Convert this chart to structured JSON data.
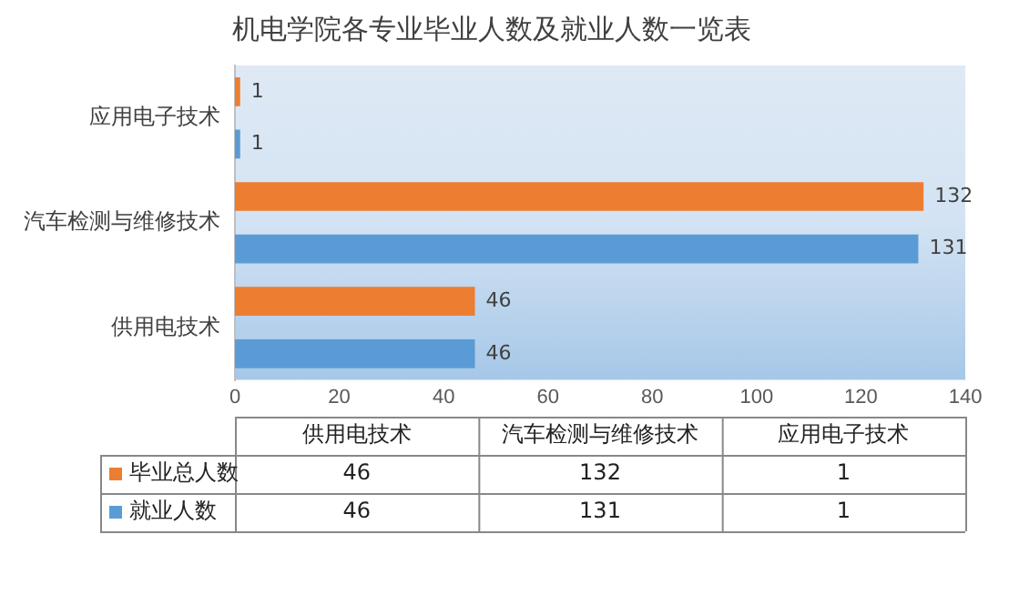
{
  "chart_data": {
    "type": "bar",
    "orientation": "horizontal",
    "title": "机电学院各专业毕业人数及就业人数一览表",
    "categories": [
      "应用电子技术",
      "汽车检测与维修技术",
      "供用电技术"
    ],
    "series": [
      {
        "name": "毕业总人数",
        "color": "#ed7d31",
        "values": [
          1,
          132,
          46
        ]
      },
      {
        "name": "就业人数",
        "color": "#5b9bd5",
        "values": [
          1,
          131,
          46
        ]
      }
    ],
    "annotations": [
      "46",
      "132",
      "1",
      "46",
      "131",
      "1"
    ],
    "xlim": [
      0,
      140
    ],
    "xticks": [
      0,
      20,
      40,
      60,
      80,
      100,
      120,
      140
    ],
    "grid": false,
    "legend": "bottom",
    "data_labels": true
  }
}
